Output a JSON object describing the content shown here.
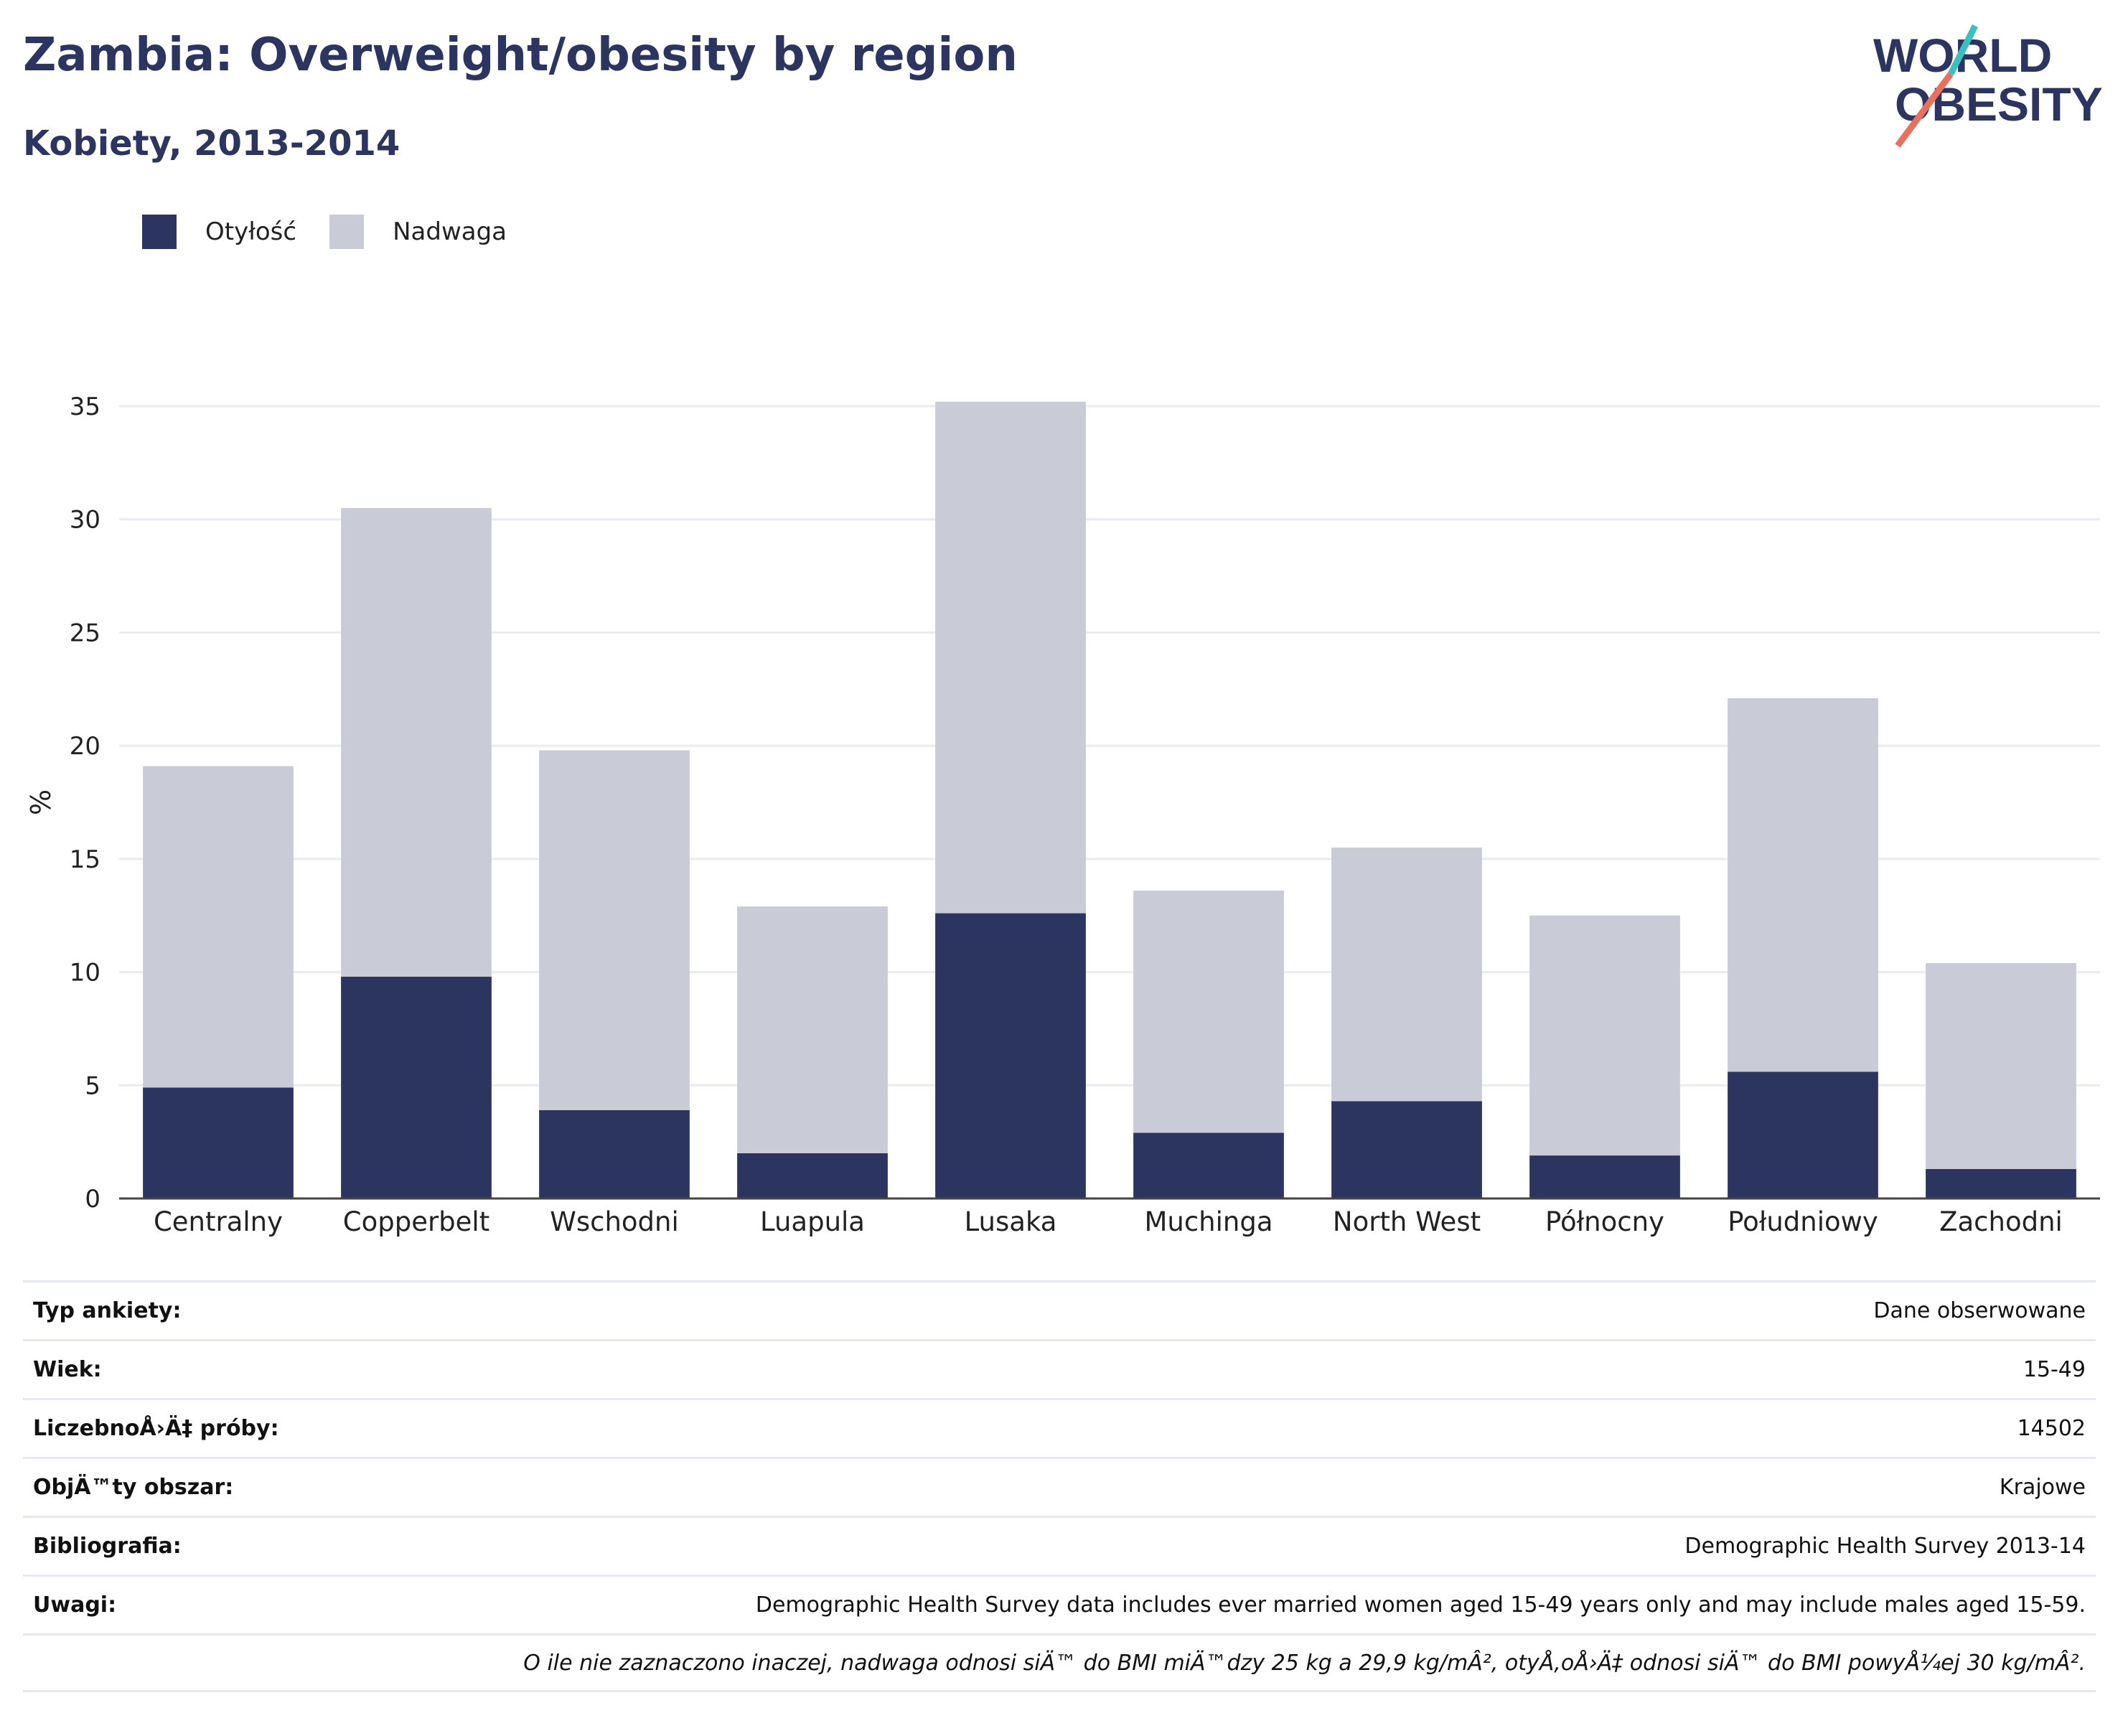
{
  "header": {
    "title": "Zambia: Overweight/obesity by region",
    "subtitle": "Kobiety, 2013-2014"
  },
  "logo": {
    "line1": "WORLD",
    "line2": "OBESITY",
    "colors": {
      "text": "#2b3560",
      "slash_teal": "#3dbfbf",
      "slash_coral": "#e8705c"
    }
  },
  "legend": {
    "items": [
      {
        "label": "Otyłość",
        "color": "#2b3560"
      },
      {
        "label": "Nadwaga",
        "color": "#c9cbd7"
      }
    ]
  },
  "chart_data": {
    "type": "bar",
    "stacked": true,
    "categories": [
      "Centralny",
      "Copperbelt",
      "Wschodni",
      "Luapula",
      "Lusaka",
      "Muchinga",
      "North West",
      "Północny",
      "Południowy",
      "Zachodni"
    ],
    "series": [
      {
        "name": "Otyłość",
        "color": "#2b3560",
        "values": [
          4.9,
          9.8,
          3.9,
          2.0,
          12.6,
          2.9,
          4.3,
          1.9,
          5.6,
          1.3
        ]
      },
      {
        "name": "Nadwaga",
        "color": "#c9cbd7",
        "values": [
          14.2,
          20.7,
          15.9,
          10.9,
          22.6,
          10.7,
          11.2,
          10.6,
          16.5,
          9.1
        ]
      }
    ],
    "ylabel": "%",
    "ylim": [
      0,
      35
    ],
    "yticks": [
      0,
      5,
      10,
      15,
      20,
      25,
      30,
      35
    ],
    "grid": true
  },
  "meta": {
    "rows": [
      {
        "key": "Typ ankiety:",
        "value": "Dane obserwowane"
      },
      {
        "key": "Wiek:",
        "value": "15-49"
      },
      {
        "key": "LiczebnoÅ›Ä‡ próby:",
        "value": "14502"
      },
      {
        "key": "ObjÄ™ty obszar:",
        "value": "Krajowe"
      },
      {
        "key": "Bibliografia:",
        "value": "Demographic Health Survey 2013-14"
      },
      {
        "key": "Uwagi:",
        "value": "Demographic Health Survey data includes ever married women aged 15-49 years only and may include males aged 15-59."
      }
    ],
    "note": "O ile nie zaznaczono inaczej, nadwaga odnosi siÄ™ do BMI miÄ™dzy 25 kg a 29,9 kg/mÂ², otyÅ‚oÅ›Ä‡ odnosi siÄ™ do BMI powyÅ¼ej 30 kg/mÂ²."
  }
}
